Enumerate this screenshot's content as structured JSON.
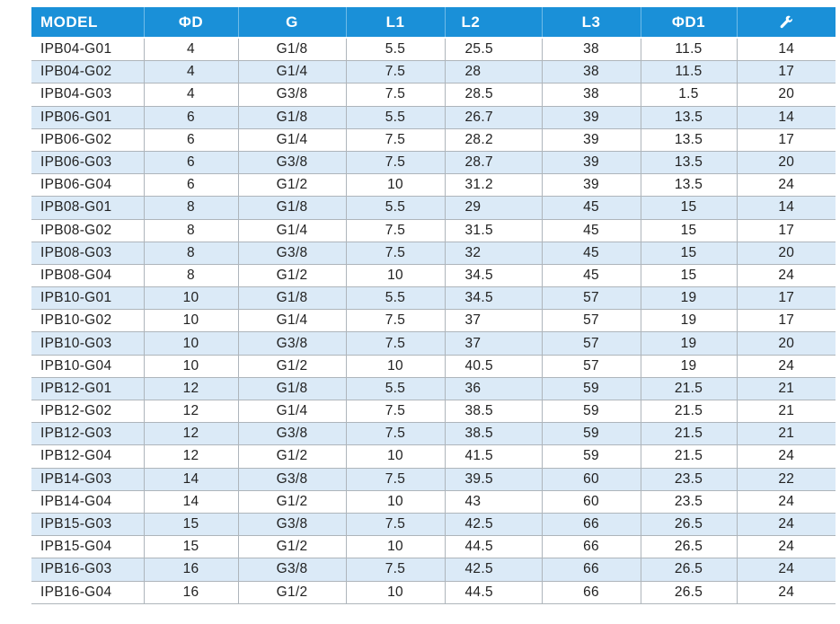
{
  "header": {
    "model": "MODEL",
    "d": "ΦD",
    "g": "G",
    "l1": "L1",
    "l2": "L2",
    "l3": "L3",
    "d1": "ΦD1",
    "hex_icon": "wrench-icon"
  },
  "rows": [
    [
      "IPB04-G01",
      "4",
      "G1/8",
      "5.5",
      "25.5",
      "38",
      "11.5",
      "14"
    ],
    [
      "IPB04-G02",
      "4",
      "G1/4",
      "7.5",
      "28",
      "38",
      "11.5",
      "17"
    ],
    [
      "IPB04-G03",
      "4",
      "G3/8",
      "7.5",
      "28.5",
      "38",
      "1.5",
      "20"
    ],
    [
      "IPB06-G01",
      "6",
      "G1/8",
      "5.5",
      "26.7",
      "39",
      "13.5",
      "14"
    ],
    [
      "IPB06-G02",
      "6",
      "G1/4",
      "7.5",
      "28.2",
      "39",
      "13.5",
      "17"
    ],
    [
      "IPB06-G03",
      "6",
      "G3/8",
      "7.5",
      "28.7",
      "39",
      "13.5",
      "20"
    ],
    [
      "IPB06-G04",
      "6",
      "G1/2",
      "10",
      "31.2",
      "39",
      "13.5",
      "24"
    ],
    [
      "IPB08-G01",
      "8",
      "G1/8",
      "5.5",
      "29",
      "45",
      "15",
      "14"
    ],
    [
      "IPB08-G02",
      "8",
      "G1/4",
      "7.5",
      "31.5",
      "45",
      "15",
      "17"
    ],
    [
      "IPB08-G03",
      "8",
      "G3/8",
      "7.5",
      "32",
      "45",
      "15",
      "20"
    ],
    [
      "IPB08-G04",
      "8",
      "G1/2",
      "10",
      "34.5",
      "45",
      "15",
      "24"
    ],
    [
      "IPB10-G01",
      "10",
      "G1/8",
      "5.5",
      "34.5",
      "57",
      "19",
      "17"
    ],
    [
      "IPB10-G02",
      "10",
      "G1/4",
      "7.5",
      "37",
      "57",
      "19",
      "17"
    ],
    [
      "IPB10-G03",
      "10",
      "G3/8",
      "7.5",
      "37",
      "57",
      "19",
      "20"
    ],
    [
      "IPB10-G04",
      "10",
      "G1/2",
      "10",
      "40.5",
      "57",
      "19",
      "24"
    ],
    [
      "IPB12-G01",
      "12",
      "G1/8",
      "5.5",
      "36",
      "59",
      "21.5",
      "21"
    ],
    [
      "IPB12-G02",
      "12",
      "G1/4",
      "7.5",
      "38.5",
      "59",
      "21.5",
      "21"
    ],
    [
      "IPB12-G03",
      "12",
      "G3/8",
      "7.5",
      "38.5",
      "59",
      "21.5",
      "21"
    ],
    [
      "IPB12-G04",
      "12",
      "G1/2",
      "10",
      "41.5",
      "59",
      "21.5",
      "24"
    ],
    [
      "IPB14-G03",
      "14",
      "G3/8",
      "7.5",
      "39.5",
      "60",
      "23.5",
      "22"
    ],
    [
      "IPB14-G04",
      "14",
      "G1/2",
      "10",
      "43",
      "60",
      "23.5",
      "24"
    ],
    [
      "IPB15-G03",
      "15",
      "G3/8",
      "7.5",
      "42.5",
      "66",
      "26.5",
      "24"
    ],
    [
      "IPB15-G04",
      "15",
      "G1/2",
      "10",
      "44.5",
      "66",
      "26.5",
      "24"
    ],
    [
      "IPB16-G03",
      "16",
      "G3/8",
      "7.5",
      "42.5",
      "66",
      "26.5",
      "24"
    ],
    [
      "IPB16-G04",
      "16",
      "G1/2",
      "10",
      "44.5",
      "66",
      "26.5",
      "24"
    ]
  ],
  "colors": {
    "header_bg": "#1a90d8",
    "stripe": "#dbeaf7",
    "grid": "#aeb5bb"
  }
}
